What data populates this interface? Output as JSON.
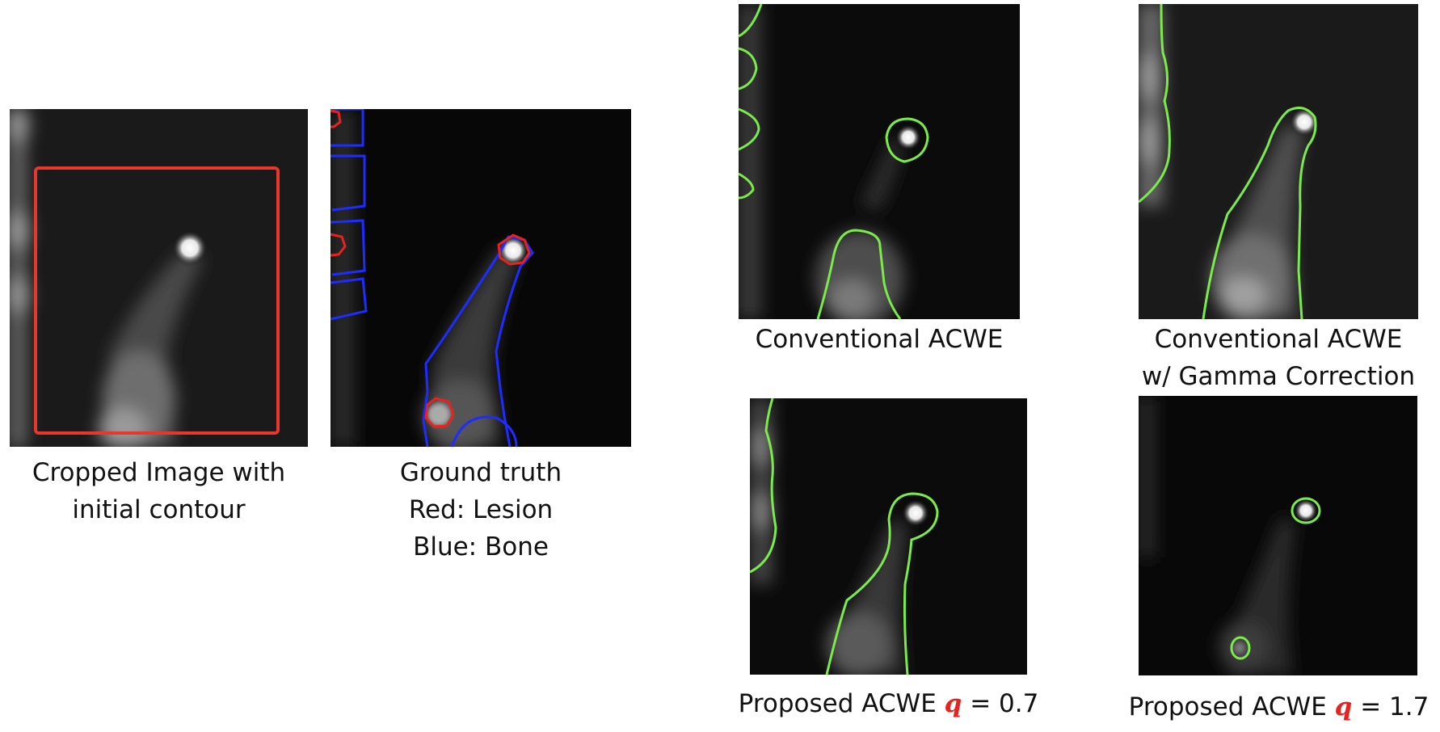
{
  "figure": {
    "panels": [
      {
        "id": "cropped",
        "caption_lines": [
          "Cropped Image with",
          "initial contour"
        ]
      },
      {
        "id": "ground-truth",
        "caption_lines": [
          "Ground truth",
          "Red: Lesion",
          "Blue: Bone"
        ]
      },
      {
        "id": "conventional",
        "caption_lines": [
          "Conventional ACWE"
        ]
      },
      {
        "id": "conventional-gamma",
        "caption_lines": [
          "Conventional ACWE",
          "w/ Gamma Correction"
        ]
      },
      {
        "id": "proposed-07",
        "caption_prefix": "Proposed ACWE ",
        "q_symbol": "q",
        "caption_suffix": " = 0.7"
      },
      {
        "id": "proposed-17",
        "caption_prefix": "Proposed ACWE ",
        "q_symbol": "q",
        "caption_suffix": " = 1.7"
      }
    ],
    "colors": {
      "initial_contour": "#e8372c",
      "lesion": "#e8231f",
      "bone": "#1f2cff",
      "segmentation": "#7bea4a",
      "q_symbol": "#e8231f"
    }
  }
}
